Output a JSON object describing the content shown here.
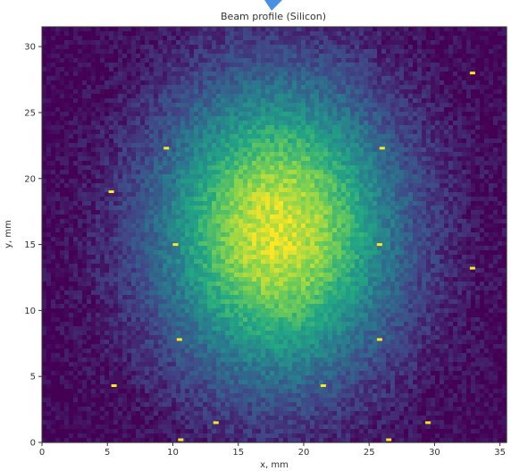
{
  "chart_data": {
    "type": "heatmap",
    "title": "Beam profile (Silicon)",
    "xlabel": "x, mm",
    "ylabel": "y, mm",
    "xlim": [
      0,
      35.5
    ],
    "ylim": [
      0,
      31.5
    ],
    "x_ticks": [
      0,
      5,
      10,
      15,
      20,
      25,
      30,
      35
    ],
    "y_ticks": [
      0,
      5,
      10,
      15,
      20,
      25,
      30
    ],
    "colormap": "viridis",
    "grid": false,
    "beam_center": {
      "x": 18.0,
      "y": 16.0
    },
    "beam_sigma": {
      "x": 6.5,
      "y": 8.0
    },
    "hot_spots": [
      {
        "x": 9.5,
        "y": 22.3
      },
      {
        "x": 26.0,
        "y": 22.3
      },
      {
        "x": 10.2,
        "y": 15.0
      },
      {
        "x": 25.8,
        "y": 15.0
      },
      {
        "x": 10.5,
        "y": 7.8
      },
      {
        "x": 25.8,
        "y": 7.8
      },
      {
        "x": 5.3,
        "y": 19.0
      },
      {
        "x": 32.9,
        "y": 28.0
      },
      {
        "x": 32.9,
        "y": 13.2
      },
      {
        "x": 5.5,
        "y": 4.3
      },
      {
        "x": 21.5,
        "y": 4.3
      },
      {
        "x": 13.3,
        "y": 1.5
      },
      {
        "x": 29.5,
        "y": 1.5
      },
      {
        "x": 10.6,
        "y": 0.2
      },
      {
        "x": 26.5,
        "y": 0.2
      }
    ],
    "colors": {
      "low": "#440154",
      "mid_low": "#3b528b",
      "mid": "#21918c",
      "mid_high": "#5ec962",
      "high": "#fde725",
      "hot_spot": "#fde725"
    }
  }
}
